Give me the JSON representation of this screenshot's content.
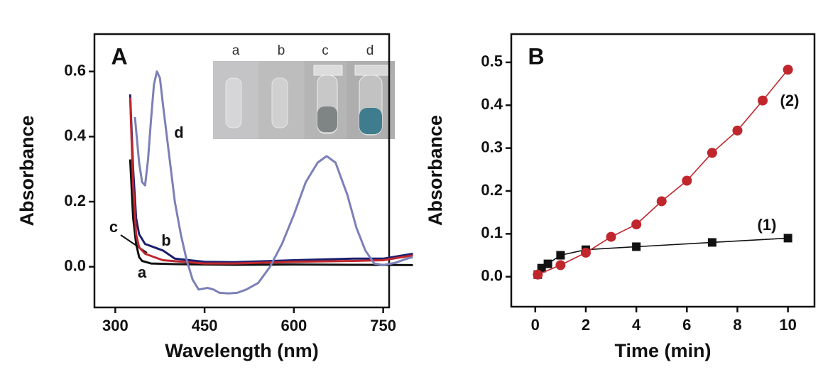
{
  "chart_data": [
    {
      "type": "line",
      "title": "A",
      "xlabel": "Wavelength  (nm)",
      "ylabel": "Absorbance",
      "xlim": [
        265,
        760
      ],
      "ylim": [
        -0.125,
        0.715
      ],
      "xticks": [
        300,
        450,
        600,
        750
      ],
      "yticks": [
        {
          "value": 0,
          "label": "0.0"
        },
        0.2,
        0.4,
        0.6
      ],
      "inset_labels": [
        "a",
        "b",
        "c",
        "d"
      ],
      "series": [
        {
          "name": "a",
          "color": "#111111",
          "x": [
            325,
            330,
            335,
            340,
            345,
            360,
            400,
            500,
            600,
            700,
            800
          ],
          "values": [
            0.33,
            0.15,
            0.07,
            0.03,
            0.018,
            0.01,
            0.008,
            0.006,
            0.007,
            0.006,
            0.005
          ]
        },
        {
          "name": "b",
          "color": "#1c1f6e",
          "x": [
            325,
            330,
            335,
            340,
            350,
            365,
            380,
            400,
            450,
            500,
            600,
            700,
            750,
            800
          ],
          "values": [
            0.53,
            0.3,
            0.15,
            0.1,
            0.07,
            0.06,
            0.05,
            0.025,
            0.015,
            0.014,
            0.02,
            0.025,
            0.025,
            0.04
          ]
        },
        {
          "name": "c",
          "color": "#c0272d",
          "x": [
            325,
            330,
            335,
            340,
            350,
            365,
            380,
            450,
            500,
            600,
            700,
            750,
            800
          ],
          "values": [
            0.52,
            0.25,
            0.1,
            0.06,
            0.04,
            0.03,
            0.02,
            0.01,
            0.01,
            0.015,
            0.018,
            0.02,
            0.035
          ]
        },
        {
          "name": "d",
          "color": "#7b80b8",
          "x": [
            333,
            340,
            345,
            350,
            355,
            360,
            365,
            370,
            375,
            380,
            390,
            400,
            410,
            420,
            430,
            440,
            455,
            465,
            475,
            490,
            505,
            520,
            540,
            560,
            580,
            600,
            620,
            640,
            655,
            670,
            690,
            705,
            720,
            735,
            750,
            770,
            790,
            800
          ],
          "values": [
            0.46,
            0.32,
            0.26,
            0.25,
            0.33,
            0.45,
            0.56,
            0.6,
            0.58,
            0.5,
            0.35,
            0.2,
            0.1,
            0.02,
            -0.04,
            -0.07,
            -0.065,
            -0.07,
            -0.08,
            -0.082,
            -0.08,
            -0.07,
            -0.05,
            0.0,
            0.07,
            0.16,
            0.26,
            0.32,
            0.34,
            0.32,
            0.22,
            0.12,
            0.05,
            0.01,
            0.005,
            0.012,
            0.025,
            0.03
          ]
        }
      ]
    },
    {
      "type": "line",
      "title": "B",
      "xlabel": "Time (min)",
      "ylabel": "Absorbance",
      "xlim": [
        -0.95,
        11.05
      ],
      "ylim": [
        -0.07,
        0.566
      ],
      "xticks": [
        0,
        2,
        4,
        6,
        8,
        10
      ],
      "yticks": [
        {
          "value": 0,
          "label": "0.0"
        },
        0.1,
        0.2,
        0.3,
        0.4,
        0.5
      ],
      "series": [
        {
          "name": "(1)",
          "color": "#111111",
          "marker": "square",
          "x": [
            0.1,
            0.25,
            0.5,
            1,
            2,
            4,
            7,
            10
          ],
          "values": [
            0.005,
            0.02,
            0.03,
            0.05,
            0.063,
            0.07,
            0.08,
            0.09
          ]
        },
        {
          "name": "(2)",
          "color": "#c0272d",
          "marker": "circle",
          "x": [
            0.1,
            1,
            2,
            3,
            4,
            5,
            6,
            7,
            8,
            9,
            10
          ],
          "values": [
            0.005,
            0.027,
            0.056,
            0.093,
            0.122,
            0.176,
            0.224,
            0.289,
            0.341,
            0.411,
            0.483
          ]
        }
      ]
    }
  ]
}
